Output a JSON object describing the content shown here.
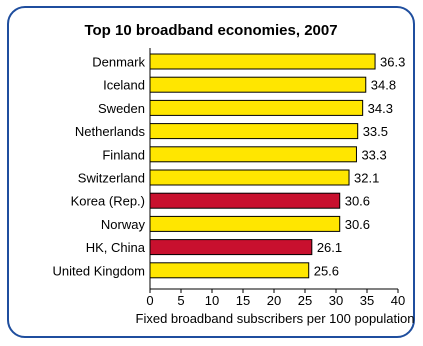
{
  "chart_data": {
    "type": "bar",
    "orientation": "horizontal",
    "title": "Top 10 broadband economies, 2007",
    "xlabel": "Fixed broadband subscribers per 100 population",
    "ylabel": "",
    "xlim": [
      0,
      40
    ],
    "xticks": [
      0,
      5,
      10,
      15,
      20,
      25,
      30,
      35,
      40
    ],
    "grid": false,
    "categories": [
      "Denmark",
      "Iceland",
      "Sweden",
      "Netherlands",
      "Finland",
      "Switzerland",
      "Korea (Rep.)",
      "Norway",
      "HK, China",
      "United Kingdom"
    ],
    "values": [
      36.3,
      34.8,
      34.3,
      33.5,
      33.3,
      32.1,
      30.6,
      30.6,
      26.1,
      25.6
    ],
    "value_labels": [
      "36.3",
      "34.8",
      "34.3",
      "33.5",
      "33.3",
      "32.1",
      "30.6",
      "30.6",
      "26.1",
      "25.6"
    ],
    "highlighted": [
      "Korea (Rep.)",
      "HK, China"
    ],
    "colors": {
      "default_bar": "#ffe600",
      "highlight_bar": "#c8102e",
      "bar_border": "#000000",
      "frame": "#1f4e9e"
    }
  }
}
